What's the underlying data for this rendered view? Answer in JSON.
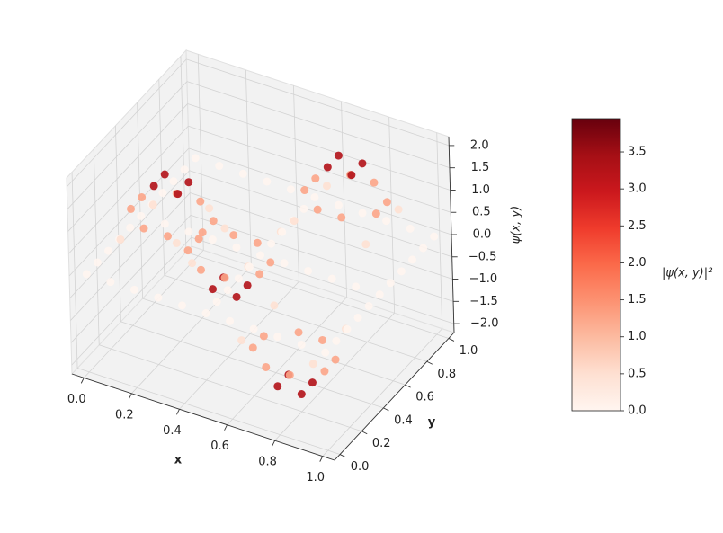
{
  "chart_data": {
    "type": "scatter3d",
    "xlabel": "x",
    "ylabel": "y",
    "zlabel": "ψ(x, y)",
    "colorbar_label": "|ψ(x, y)|²",
    "x": [
      0,
      0.1,
      0.2,
      0.3,
      0.4,
      0.5,
      0.6,
      0.7,
      0.8,
      0.9,
      1
    ],
    "y": [
      0,
      0.1,
      0.2,
      0.3,
      0.4,
      0.5,
      0.6,
      0.7,
      0.8,
      0.9,
      1
    ],
    "z": [
      [
        0,
        0,
        0,
        0,
        0,
        0,
        0,
        0,
        0,
        0,
        0
      ],
      [
        0,
        0.691,
        1.118,
        1.118,
        0.691,
        0,
        -0.691,
        -1.118,
        -1.118,
        -0.691,
        0
      ],
      [
        0,
        1.118,
        1.809,
        1.809,
        1.118,
        0,
        -1.118,
        -1.809,
        -1.809,
        -1.118,
        0
      ],
      [
        0,
        1.118,
        1.809,
        1.809,
        1.118,
        0,
        -1.118,
        -1.809,
        -1.809,
        -1.118,
        0
      ],
      [
        0,
        0.691,
        1.118,
        1.118,
        0.691,
        0,
        -0.691,
        -1.118,
        -1.118,
        -0.691,
        0
      ],
      [
        0,
        0,
        0,
        0,
        0,
        0,
        0,
        0,
        0,
        0,
        0
      ],
      [
        0,
        -0.691,
        -1.118,
        -1.118,
        -0.691,
        0,
        0.691,
        1.118,
        1.118,
        0.691,
        0
      ],
      [
        0,
        -1.118,
        -1.809,
        -1.809,
        -1.118,
        0,
        1.118,
        1.809,
        1.809,
        1.118,
        0
      ],
      [
        0,
        -1.118,
        -1.809,
        -1.809,
        -1.118,
        0,
        1.118,
        1.809,
        1.809,
        1.118,
        0
      ],
      [
        0,
        -0.691,
        -1.118,
        -1.118,
        -0.691,
        0,
        0.691,
        1.118,
        1.118,
        0.691,
        0
      ],
      [
        0,
        0,
        0,
        0,
        0,
        0,
        0,
        0,
        0,
        0,
        0
      ]
    ],
    "xlim": [
      -0.05,
      1.05
    ],
    "ylim": [
      -0.05,
      1.05
    ],
    "zlim": [
      -2.2,
      2.2
    ],
    "xticks": [
      {
        "value": 0,
        "label": "0.0"
      },
      {
        "value": 0.2,
        "label": "0.2"
      },
      {
        "value": 0.4,
        "label": "0.4"
      },
      {
        "value": 0.6,
        "label": "0.6"
      },
      {
        "value": 0.8,
        "label": "0.8"
      },
      {
        "value": 1,
        "label": "1.0"
      }
    ],
    "yticks": [
      {
        "value": 0,
        "label": "0.0"
      },
      {
        "value": 0.2,
        "label": "0.2"
      },
      {
        "value": 0.4,
        "label": "0.4"
      },
      {
        "value": 0.6,
        "label": "0.6"
      },
      {
        "value": 0.8,
        "label": "0.8"
      },
      {
        "value": 1,
        "label": "1.0"
      }
    ],
    "zticks": [
      {
        "value": -2,
        "label": "−2.0"
      },
      {
        "value": -1.5,
        "label": "−1.5"
      },
      {
        "value": -1,
        "label": "−1.0"
      },
      {
        "value": -0.5,
        "label": "−0.5"
      },
      {
        "value": 0,
        "label": "0.0"
      },
      {
        "value": 0.5,
        "label": "0.5"
      },
      {
        "value": 1,
        "label": "1.0"
      },
      {
        "value": 1.5,
        "label": "1.5"
      },
      {
        "value": 2,
        "label": "2.0"
      }
    ],
    "clim": [
      0,
      3.95
    ],
    "cticks": [
      {
        "value": 0,
        "label": "0.0"
      },
      {
        "value": 0.5,
        "label": "0.5"
      },
      {
        "value": 1,
        "label": "1.0"
      },
      {
        "value": 1.5,
        "label": "1.5"
      },
      {
        "value": 2,
        "label": "2.0"
      },
      {
        "value": 2.5,
        "label": "2.5"
      },
      {
        "value": 3,
        "label": "3.0"
      },
      {
        "value": 3.5,
        "label": "3.5"
      }
    ],
    "colormap": [
      "#fff5f0",
      "#fee0d2",
      "#fcbba1",
      "#fc9272",
      "#fb6a4a",
      "#ef3b2c",
      "#cb181d",
      "#a50f15",
      "#67000d"
    ],
    "grid": true
  }
}
